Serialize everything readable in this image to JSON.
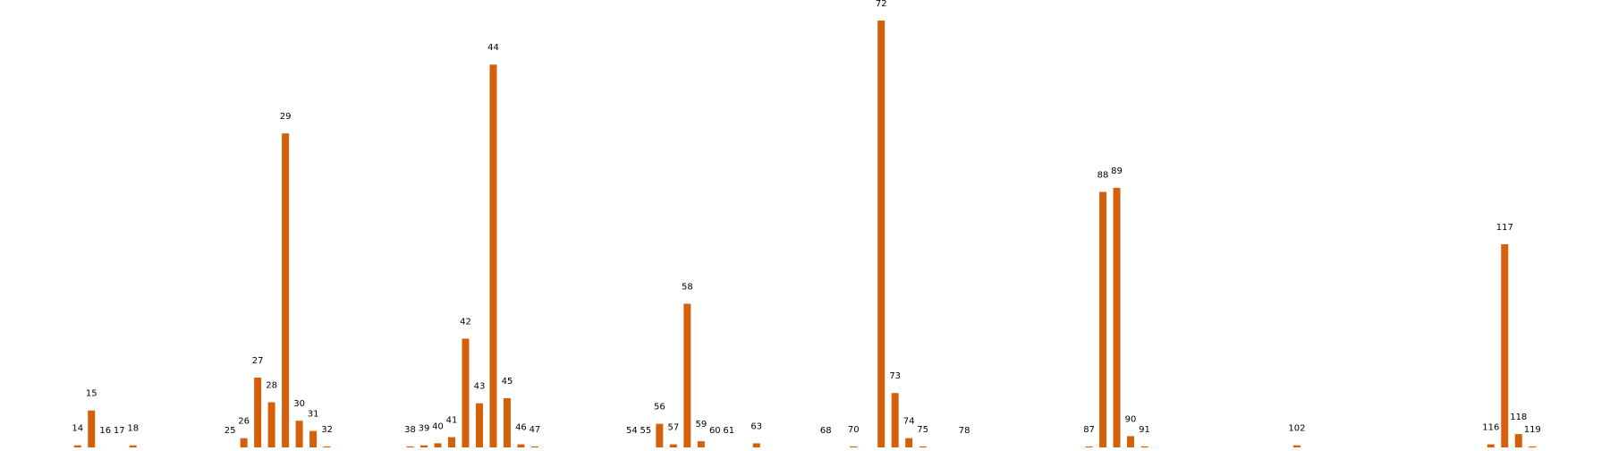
{
  "chart_data": {
    "type": "bar",
    "x": [
      14,
      15,
      16,
      17,
      18,
      25,
      26,
      27,
      28,
      29,
      30,
      31,
      32,
      38,
      39,
      40,
      41,
      42,
      43,
      44,
      45,
      46,
      47,
      54,
      55,
      56,
      57,
      58,
      59,
      60,
      61,
      63,
      68,
      70,
      72,
      73,
      74,
      75,
      78,
      87,
      88,
      89,
      90,
      91,
      102,
      116,
      117,
      118,
      119
    ],
    "values": [
      2,
      36,
      0,
      0,
      2,
      0,
      9,
      68,
      44,
      306,
      26,
      16,
      1,
      1,
      2,
      4,
      10,
      106,
      43,
      373,
      48,
      3,
      1,
      0,
      0,
      23,
      3,
      140,
      6,
      0,
      0,
      4,
      0,
      1,
      416,
      53,
      9,
      1,
      0,
      1,
      249,
      253,
      11,
      1,
      2,
      3,
      198,
      13,
      1
    ],
    "color": "#d4600c",
    "xlim": [
      8.4,
      124.6
    ],
    "ylim": [
      0,
      436
    ]
  }
}
